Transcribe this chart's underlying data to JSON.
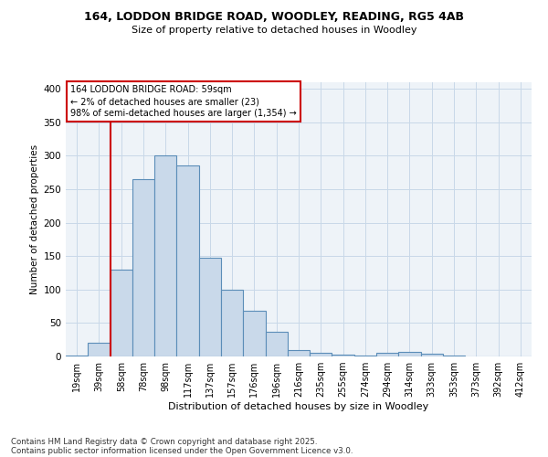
{
  "title1": "164, LODDON BRIDGE ROAD, WOODLEY, READING, RG5 4AB",
  "title2": "Size of property relative to detached houses in Woodley",
  "xlabel": "Distribution of detached houses by size in Woodley",
  "ylabel": "Number of detached properties",
  "bin_labels": [
    "19sqm",
    "39sqm",
    "58sqm",
    "78sqm",
    "98sqm",
    "117sqm",
    "137sqm",
    "157sqm",
    "176sqm",
    "196sqm",
    "216sqm",
    "235sqm",
    "255sqm",
    "274sqm",
    "294sqm",
    "314sqm",
    "333sqm",
    "353sqm",
    "373sqm",
    "392sqm",
    "412sqm"
  ],
  "bar_heights": [
    2,
    20,
    130,
    265,
    300,
    285,
    148,
    100,
    68,
    37,
    10,
    6,
    3,
    1,
    5,
    7,
    4,
    1,
    0,
    0,
    0
  ],
  "bar_color": "#c9d9ea",
  "bar_edge_color": "#5b8db8",
  "grid_color": "#c8d8e8",
  "bg_color": "#eef3f8",
  "vline_color": "#cc0000",
  "annotation_text": "164 LODDON BRIDGE ROAD: 59sqm\n← 2% of detached houses are smaller (23)\n98% of semi-detached houses are larger (1,354) →",
  "annotation_box_color": "#cc0000",
  "footnote1": "Contains HM Land Registry data © Crown copyright and database right 2025.",
  "footnote2": "Contains public sector information licensed under the Open Government Licence v3.0.",
  "ylim": [
    0,
    410
  ],
  "yticks": [
    0,
    50,
    100,
    150,
    200,
    250,
    300,
    350,
    400
  ]
}
